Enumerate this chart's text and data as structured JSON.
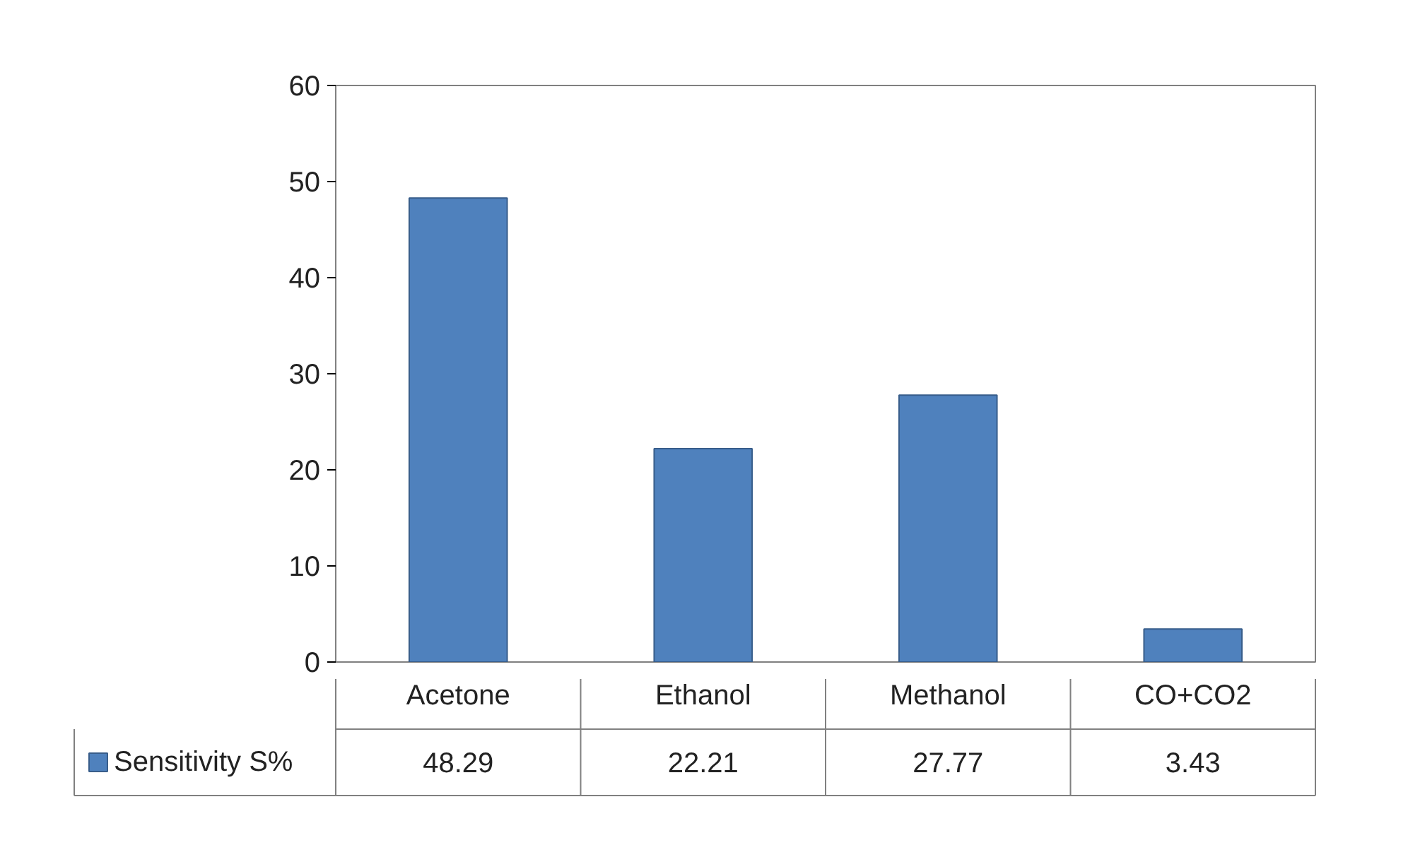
{
  "chart_data": {
    "type": "bar",
    "categories": [
      "Acetone",
      "Ethanol",
      "Methanol",
      "CO+CO2"
    ],
    "series": [
      {
        "name": "Sensitivity S%",
        "color": "#4f81bd",
        "values": [
          48.29,
          22.21,
          27.77,
          3.43
        ]
      }
    ],
    "ylim": [
      0,
      60
    ],
    "yticks": [
      0,
      10,
      20,
      30,
      40,
      50,
      60
    ],
    "grid": false,
    "legend": "bottom",
    "data_labels": true
  }
}
